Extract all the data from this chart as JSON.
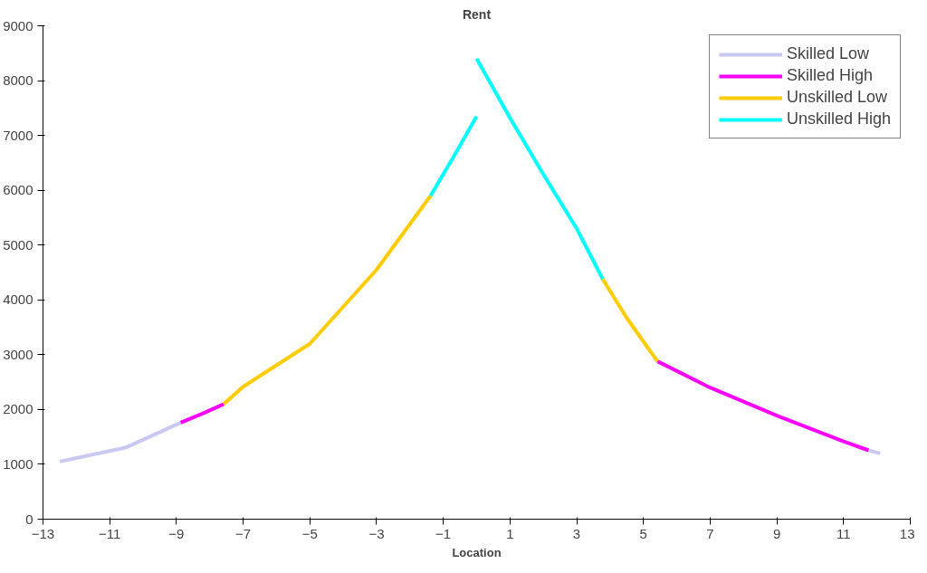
{
  "chart_data": {
    "type": "line",
    "ylabel": "Rent",
    "xlabel": "Location",
    "xlim": [
      -13,
      13
    ],
    "xticks": [
      -13,
      -11,
      -9,
      -7,
      -5,
      -3,
      -1,
      1,
      3,
      5,
      7,
      9,
      11,
      13
    ],
    "ylim": [
      0,
      9000
    ],
    "yticks": [
      0,
      1000,
      2000,
      3000,
      4000,
      5000,
      6000,
      7000,
      8000,
      9000
    ],
    "grid": false,
    "legend": "top right",
    "marker": "none",
    "line_style": "solid",
    "series": [
      {
        "name": "Skilled Low",
        "color": "#c8c8f0",
        "x": [
          -12.5,
          -10.5,
          -8.87,
          null,
          11.75,
          12.1
        ],
        "values": [
          1050,
          1310,
          1760,
          null,
          1255,
          1200
        ]
      },
      {
        "name": "Skilled High",
        "color": "#ff00ff",
        "x": [
          -8.87,
          -8.2,
          -7.58,
          null,
          5.42,
          7,
          9,
          11,
          11.75
        ],
        "values": [
          1760,
          1930,
          2100,
          null,
          2880,
          2400,
          1890,
          1420,
          1255
        ]
      },
      {
        "name": "Unskilled Low",
        "color": "#ffcc00",
        "x": [
          -7.58,
          -7,
          -5,
          -3,
          -1.38,
          null,
          3.78,
          4.5,
          5.42
        ],
        "values": [
          2100,
          2415,
          3200,
          4550,
          5900,
          null,
          4380,
          3670,
          2880
        ]
      },
      {
        "name": "Unskilled High",
        "color": "#00ffff",
        "x": [
          -1.38,
          -0.7,
          0,
          null,
          0,
          1,
          2,
          3,
          3.78
        ],
        "values": [
          5900,
          6600,
          7350,
          null,
          8400,
          7320,
          6290,
          5300,
          4380
        ]
      }
    ]
  }
}
